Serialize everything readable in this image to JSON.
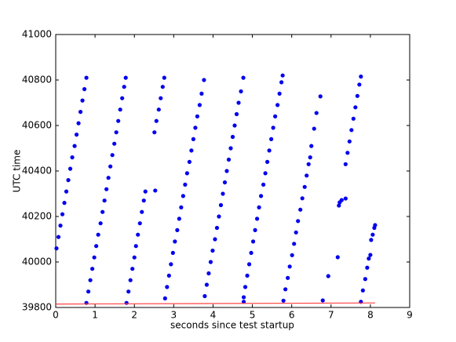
{
  "chart_data": {
    "type": "scatter",
    "xlabel": "seconds since test startup",
    "ylabel": "UTC time",
    "xlim": [
      0,
      9
    ],
    "xticks": [
      0,
      1,
      2,
      3,
      4,
      5,
      6,
      7,
      8,
      9
    ],
    "ylim": [
      39800,
      41000
    ],
    "yticks": [
      39800,
      40000,
      40200,
      40400,
      40600,
      40800,
      41000
    ],
    "grid": false,
    "series": [
      {
        "color": "#0000ee",
        "x": [
          0.02,
          0.07,
          0.12,
          0.17,
          0.22,
          0.27,
          0.32,
          0.37,
          0.42,
          0.48,
          0.53,
          0.58,
          0.63,
          0.68,
          0.73,
          0.78
        ],
        "values": [
          40060,
          40110,
          40160,
          40210,
          40260,
          40310,
          40360,
          40410,
          40460,
          40510,
          40560,
          40610,
          40660,
          40710,
          40760,
          40810
        ]
      },
      {
        "color": "#0000ee",
        "x": [
          0.78,
          0.83,
          0.88,
          0.93,
          0.98,
          1.03,
          1.08,
          1.14,
          1.19,
          1.24,
          1.29,
          1.34,
          1.39,
          1.44,
          1.49,
          1.54,
          1.59,
          1.64,
          1.69,
          1.74,
          1.78
        ],
        "values": [
          39820,
          39870,
          39920,
          39970,
          40020,
          40070,
          40120,
          40170,
          40220,
          40270,
          40320,
          40370,
          40420,
          40470,
          40520,
          40570,
          40620,
          40670,
          40720,
          40770,
          40810
        ]
      },
      {
        "color": "#0000ee",
        "x": [
          1.8,
          1.85,
          1.9,
          1.95,
          2.0,
          2.04,
          2.09,
          2.14,
          2.19,
          2.24,
          2.28,
          2.53,
          2.51,
          2.56,
          2.62,
          2.67,
          2.72,
          2.76
        ],
        "values": [
          39820,
          39870,
          39920,
          39970,
          40020,
          40070,
          40120,
          40170,
          40220,
          40270,
          40310,
          40314,
          40570,
          40620,
          40670,
          40720,
          40770,
          40810
        ]
      },
      {
        "color": "#0000ee",
        "x": [
          2.78,
          2.83,
          2.88,
          2.93,
          2.98,
          3.03,
          3.09,
          3.14,
          3.19,
          3.24,
          3.29,
          3.34,
          3.4,
          3.45,
          3.5,
          3.55,
          3.6,
          3.66,
          3.71,
          3.77
        ],
        "values": [
          39840,
          39890,
          39940,
          39990,
          40040,
          40090,
          40140,
          40190,
          40240,
          40290,
          40340,
          40390,
          40440,
          40490,
          40540,
          40590,
          40640,
          40690,
          40740,
          40800
        ]
      },
      {
        "color": "#0000ee",
        "x": [
          3.79,
          3.84,
          3.89,
          3.94,
          3.99,
          4.05,
          4.1,
          4.15,
          4.2,
          4.25,
          4.3,
          4.35,
          4.4,
          4.45,
          4.5,
          4.55,
          4.6,
          4.65,
          4.71,
          4.77,
          4.78,
          4.78
        ],
        "values": [
          39850,
          39900,
          39950,
          40000,
          40050,
          40100,
          40150,
          40200,
          40250,
          40300,
          40350,
          40400,
          40450,
          40500,
          40550,
          40600,
          40650,
          40700,
          40750,
          40810,
          39825,
          39845
        ]
      },
      {
        "color": "#0000ee",
        "x": [
          4.82,
          4.87,
          4.92,
          4.97,
          5.02,
          5.07,
          5.12,
          5.17,
          5.22,
          5.28,
          5.33,
          5.38,
          5.43,
          5.48,
          5.53,
          5.58,
          5.64,
          5.69,
          5.74,
          5.77
        ],
        "values": [
          39890,
          39940,
          39990,
          40040,
          40090,
          40140,
          40190,
          40240,
          40290,
          40340,
          40390,
          40440,
          40490,
          40540,
          40590,
          40640,
          40690,
          40740,
          40790,
          40820
        ]
      },
      {
        "color": "#0000ee",
        "x": [
          5.79,
          5.84,
          5.9,
          5.95,
          6.01,
          6.06,
          6.11,
          6.16,
          6.22,
          6.27,
          6.33,
          6.38,
          6.43,
          6.47,
          6.5,
          6.57,
          6.63,
          6.73,
          6.79,
          6.93,
          7.17,
          7.2,
          7.22,
          7.27,
          7.37
        ],
        "values": [
          39830,
          39880,
          39930,
          39980,
          40030,
          40080,
          40130,
          40180,
          40230,
          40280,
          40330,
          40380,
          40430,
          40460,
          40510,
          40586,
          40655,
          40728,
          39831,
          39938,
          40021,
          40248,
          40262,
          40272,
          40279
        ]
      },
      {
        "color": "#0000ee",
        "x": [
          7.37,
          7.42,
          7.47,
          7.52,
          7.57,
          7.62,
          7.67,
          7.72,
          7.76
        ],
        "values": [
          40430,
          40480,
          40530,
          40580,
          40630,
          40680,
          40730,
          40780,
          40815
        ]
      },
      {
        "color": "#0000ee",
        "x": [
          7.76,
          7.81,
          7.87,
          7.92,
          7.96,
          8.0,
          8.02,
          8.06,
          8.1,
          8.12
        ],
        "values": [
          39825,
          39875,
          39925,
          39975,
          40015,
          40031,
          40097,
          40120,
          40150,
          40162
        ]
      },
      {
        "color": "#ff4040",
        "style": "line",
        "x": [
          0,
          8.12
        ],
        "values": [
          39815,
          39820
        ]
      }
    ]
  }
}
